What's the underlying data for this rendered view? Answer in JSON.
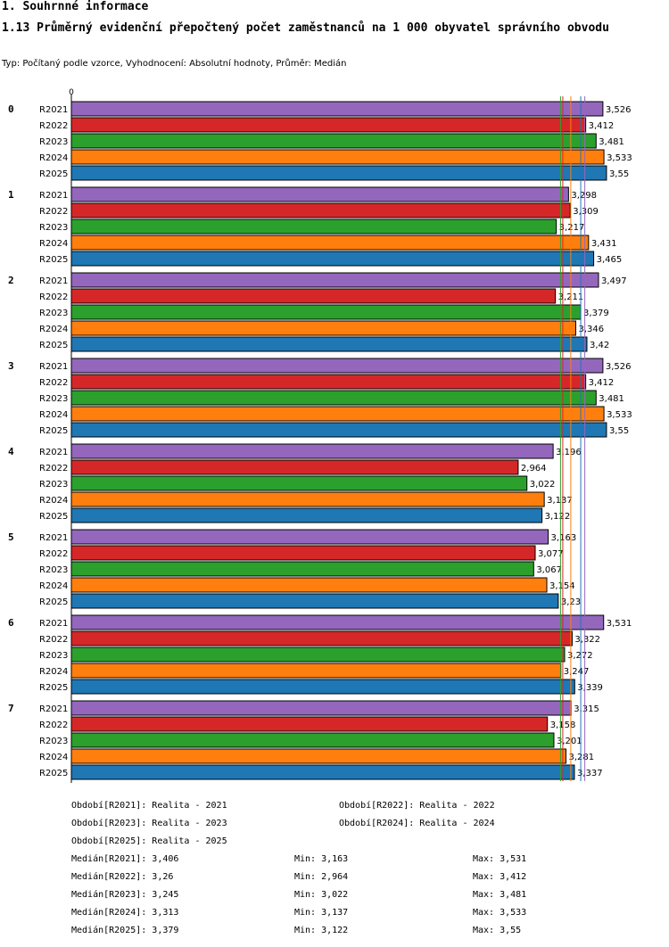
{
  "header": {
    "section": "1. Souhrnné informace",
    "title": "1.13 Průměrný evidenční přepočtený počet zaměstnanců na 1 000 obyvatel správního obvodu",
    "subtitle": "Typ: Počítaný podle vzorce, Vyhodnocení: Absolutní hodnoty, Průměr: Medián"
  },
  "chart_data": {
    "type": "bar",
    "orientation": "horizontal",
    "x_tick_labels": [
      "0"
    ],
    "xlim": [
      0,
      3.6
    ],
    "groups": [
      "0",
      "1",
      "2",
      "3",
      "4",
      "5",
      "6",
      "7"
    ],
    "series": [
      {
        "name": "R2021",
        "color": "#9467bd",
        "values": [
          3.526,
          3.298,
          3.497,
          3.526,
          3.196,
          3.163,
          3.531,
          3.315
        ],
        "labels": [
          "3,526",
          "3,298",
          "3,497",
          "3,526",
          "3,196",
          "3,163",
          "3,531",
          "3,315"
        ]
      },
      {
        "name": "R2022",
        "color": "#d62728",
        "values": [
          3.412,
          3.309,
          3.211,
          3.412,
          2.964,
          3.077,
          3.322,
          3.158
        ],
        "labels": [
          "3,412",
          "3,309",
          "3,211",
          "3,412",
          "2,964",
          "3,077",
          "3,322",
          "3,158"
        ]
      },
      {
        "name": "R2023",
        "color": "#2ca02c",
        "values": [
          3.481,
          3.217,
          3.379,
          3.481,
          3.022,
          3.067,
          3.272,
          3.201
        ],
        "labels": [
          "3,481",
          "3,217",
          "3,379",
          "3,481",
          "3,022",
          "3,067",
          "3,272",
          "3,201"
        ]
      },
      {
        "name": "R2024",
        "color": "#ff7f0e",
        "values": [
          3.533,
          3.431,
          3.346,
          3.533,
          3.137,
          3.154,
          3.247,
          3.281
        ],
        "labels": [
          "3,533",
          "3,431",
          "3,346",
          "3,533",
          "3,137",
          "3,154",
          "3,247",
          "3,281"
        ]
      },
      {
        "name": "R2025",
        "color": "#1f77b4",
        "values": [
          3.55,
          3.465,
          3.42,
          3.55,
          3.122,
          3.23,
          3.339,
          3.337
        ],
        "labels": [
          "3,55",
          "3,465",
          "3,42",
          "3,55",
          "3,122",
          "3,23",
          "3,339",
          "3,337"
        ]
      }
    ],
    "median_lines": [
      3.406,
      3.26,
      3.245,
      3.313,
      3.379
    ]
  },
  "legend": {
    "periods": [
      "Období[R2021]: Realita - 2021",
      "Období[R2022]: Realita - 2022",
      "Období[R2023]: Realita - 2023",
      "Období[R2024]: Realita - 2024",
      "Období[R2025]: Realita - 2025"
    ],
    "stats": [
      {
        "median": "Medián[R2021]: 3,406",
        "min": "Min: 3,163",
        "max": "Max: 3,531"
      },
      {
        "median": "Medián[R2022]: 3,26",
        "min": "Min: 2,964",
        "max": "Max: 3,412"
      },
      {
        "median": "Medián[R2023]: 3,245",
        "min": "Min: 3,022",
        "max": "Max: 3,481"
      },
      {
        "median": "Medián[R2024]: 3,313",
        "min": "Min: 3,137",
        "max": "Max: 3,533"
      },
      {
        "median": "Medián[R2025]: 3,379",
        "min": "Min: 3,122",
        "max": "Max: 3,55"
      }
    ]
  }
}
